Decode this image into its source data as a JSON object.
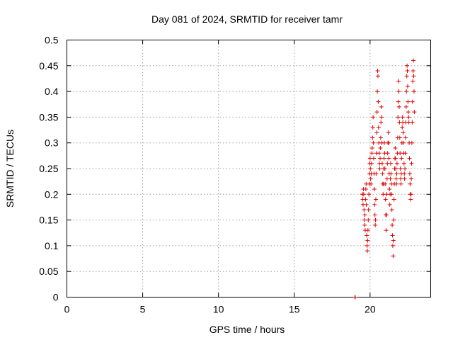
{
  "chart_data": {
    "type": "scatter",
    "title": "Day 081 of 2024, SRMTID for receiver tamr",
    "xlabel": "GPS time / hours",
    "ylabel": "SRMTID / TECUs",
    "xlim": [
      0,
      24
    ],
    "ylim": [
      0,
      0.5
    ],
    "xticks": [
      "0",
      "5",
      "10",
      "15",
      "20"
    ],
    "yticks": [
      "0",
      "0.05",
      "0.1",
      "0.15",
      "0.2",
      "0.25",
      "0.3",
      "0.35",
      "0.4",
      "0.45",
      "0.5"
    ],
    "xtick_values": [
      0,
      5,
      10,
      15,
      20
    ],
    "ytick_values": [
      0,
      0.05,
      0.1,
      0.15,
      0.2,
      0.25,
      0.3,
      0.35,
      0.4,
      0.45,
      0.5
    ],
    "grid": true,
    "marker": "plus",
    "color": "#e00000",
    "series": [
      {
        "points": [
          [
            19.0,
            0.0
          ],
          [
            19.02,
            0.0
          ],
          [
            19.5,
            0.2
          ],
          [
            19.52,
            0.19
          ],
          [
            19.54,
            0.18
          ],
          [
            19.56,
            0.21
          ],
          [
            19.58,
            0.2
          ],
          [
            19.6,
            0.17
          ],
          [
            19.62,
            0.15
          ],
          [
            19.64,
            0.14
          ],
          [
            19.66,
            0.16
          ],
          [
            19.68,
            0.13
          ],
          [
            19.7,
            0.19
          ],
          [
            19.72,
            0.21
          ],
          [
            19.74,
            0.22
          ],
          [
            19.76,
            0.18
          ],
          [
            19.78,
            0.12
          ],
          [
            19.8,
            0.1
          ],
          [
            19.82,
            0.09
          ],
          [
            19.84,
            0.11
          ],
          [
            19.86,
            0.13
          ],
          [
            19.88,
            0.15
          ],
          [
            19.9,
            0.17
          ],
          [
            19.92,
            0.2
          ],
          [
            19.94,
            0.22
          ],
          [
            19.96,
            0.24
          ],
          [
            19.98,
            0.26
          ],
          [
            20.0,
            0.27
          ],
          [
            20.02,
            0.25
          ],
          [
            20.04,
            0.23
          ],
          [
            20.06,
            0.22
          ],
          [
            20.08,
            0.24
          ],
          [
            20.1,
            0.26
          ],
          [
            20.12,
            0.28
          ],
          [
            20.14,
            0.29
          ],
          [
            20.16,
            0.31
          ],
          [
            20.18,
            0.33
          ],
          [
            20.2,
            0.35
          ],
          [
            20.22,
            0.3
          ],
          [
            20.24,
            0.27
          ],
          [
            20.26,
            0.24
          ],
          [
            20.28,
            0.21
          ],
          [
            20.3,
            0.18
          ],
          [
            20.32,
            0.16
          ],
          [
            20.34,
            0.14
          ],
          [
            20.36,
            0.15
          ],
          [
            20.38,
            0.19
          ],
          [
            20.4,
            0.24
          ],
          [
            20.42,
            0.28
          ],
          [
            20.44,
            0.32
          ],
          [
            20.46,
            0.36
          ],
          [
            20.48,
            0.4
          ],
          [
            20.5,
            0.44
          ],
          [
            20.52,
            0.43
          ],
          [
            20.54,
            0.38
          ],
          [
            20.56,
            0.33
          ],
          [
            20.58,
            0.3
          ],
          [
            20.6,
            0.28
          ],
          [
            20.62,
            0.26
          ],
          [
            20.64,
            0.25
          ],
          [
            20.66,
            0.27
          ],
          [
            20.68,
            0.29
          ],
          [
            20.7,
            0.31
          ],
          [
            20.72,
            0.34
          ],
          [
            20.74,
            0.37
          ],
          [
            20.76,
            0.35
          ],
          [
            20.78,
            0.3
          ],
          [
            20.8,
            0.26
          ],
          [
            20.82,
            0.24
          ],
          [
            20.84,
            0.22
          ],
          [
            20.86,
            0.2
          ],
          [
            20.88,
            0.22
          ],
          [
            20.9,
            0.25
          ],
          [
            20.92,
            0.27
          ],
          [
            20.94,
            0.3
          ],
          [
            20.96,
            0.28
          ],
          [
            20.98,
            0.25
          ],
          [
            21.0,
            0.22
          ],
          [
            21.02,
            0.19
          ],
          [
            21.04,
            0.16
          ],
          [
            21.06,
            0.13
          ],
          [
            21.08,
            0.16
          ],
          [
            21.1,
            0.2
          ],
          [
            21.12,
            0.23
          ],
          [
            21.14,
            0.26
          ],
          [
            21.16,
            0.28
          ],
          [
            21.18,
            0.3
          ],
          [
            21.2,
            0.32
          ],
          [
            21.22,
            0.3
          ],
          [
            21.24,
            0.27
          ],
          [
            21.26,
            0.24
          ],
          [
            21.28,
            0.21
          ],
          [
            21.3,
            0.18
          ],
          [
            21.32,
            0.2
          ],
          [
            21.34,
            0.23
          ],
          [
            21.36,
            0.26
          ],
          [
            21.38,
            0.24
          ],
          [
            21.4,
            0.22
          ],
          [
            21.42,
            0.2
          ],
          [
            21.44,
            0.17
          ],
          [
            21.46,
            0.14
          ],
          [
            21.48,
            0.12
          ],
          [
            21.5,
            0.1
          ],
          [
            21.52,
            0.08
          ],
          [
            21.54,
            0.11
          ],
          [
            21.56,
            0.15
          ],
          [
            21.58,
            0.19
          ],
          [
            21.6,
            0.22
          ],
          [
            21.62,
            0.25
          ],
          [
            21.64,
            0.27
          ],
          [
            21.66,
            0.29
          ],
          [
            21.68,
            0.27
          ],
          [
            21.7,
            0.25
          ],
          [
            21.72,
            0.23
          ],
          [
            21.74,
            0.22
          ],
          [
            21.76,
            0.24
          ],
          [
            21.78,
            0.26
          ],
          [
            21.8,
            0.28
          ],
          [
            21.82,
            0.31
          ],
          [
            21.84,
            0.35
          ],
          [
            21.86,
            0.38
          ],
          [
            21.88,
            0.42
          ],
          [
            21.9,
            0.4
          ],
          [
            21.92,
            0.37
          ],
          [
            21.94,
            0.34
          ],
          [
            21.96,
            0.31
          ],
          [
            21.98,
            0.28
          ],
          [
            22.0,
            0.25
          ],
          [
            22.02,
            0.23
          ],
          [
            22.04,
            0.22
          ],
          [
            22.06,
            0.24
          ],
          [
            22.08,
            0.27
          ],
          [
            22.1,
            0.3
          ],
          [
            22.12,
            0.33
          ],
          [
            22.14,
            0.35
          ],
          [
            22.16,
            0.34
          ],
          [
            22.18,
            0.32
          ],
          [
            22.2,
            0.3
          ],
          [
            22.22,
            0.28
          ],
          [
            22.24,
            0.26
          ],
          [
            22.26,
            0.24
          ],
          [
            22.28,
            0.23
          ],
          [
            22.3,
            0.25
          ],
          [
            22.32,
            0.28
          ],
          [
            22.34,
            0.31
          ],
          [
            22.36,
            0.34
          ],
          [
            22.38,
            0.37
          ],
          [
            22.4,
            0.4
          ],
          [
            22.42,
            0.43
          ],
          [
            22.44,
            0.45
          ],
          [
            22.46,
            0.44
          ],
          [
            22.48,
            0.41
          ],
          [
            22.5,
            0.38
          ],
          [
            22.52,
            0.36
          ],
          [
            22.54,
            0.35
          ],
          [
            22.56,
            0.34
          ],
          [
            22.58,
            0.3
          ],
          [
            22.6,
            0.27
          ],
          [
            22.62,
            0.24
          ],
          [
            22.64,
            0.22
          ],
          [
            22.66,
            0.2
          ],
          [
            22.68,
            0.19
          ],
          [
            22.7,
            0.2
          ],
          [
            22.72,
            0.23
          ],
          [
            22.74,
            0.26
          ],
          [
            22.76,
            0.3
          ],
          [
            22.78,
            0.34
          ],
          [
            22.8,
            0.38
          ],
          [
            22.82,
            0.42
          ],
          [
            22.84,
            0.44
          ],
          [
            22.86,
            0.46
          ],
          [
            22.88,
            0.43
          ],
          [
            22.9,
            0.4
          ],
          [
            22.92,
            0.36
          ]
        ]
      }
    ]
  }
}
